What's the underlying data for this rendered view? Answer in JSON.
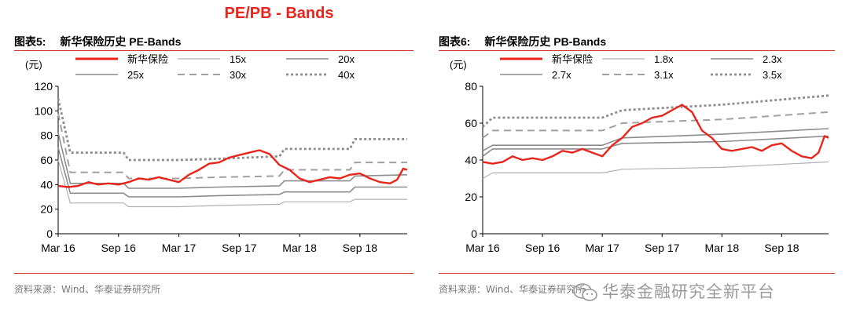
{
  "page_title": "PE/PB - Bands",
  "watermark": "华泰金融研究全新平台",
  "colors": {
    "accent": "#e8251b",
    "rule": "#d13a2c"
  },
  "chart_data": [
    {
      "type": "line",
      "figure_label": "图表5:",
      "title": "新华保险历史 PE-Bands",
      "source": "资料来源：Wind、华泰证券研究所",
      "ylabel": "(元)",
      "ylim": [
        0,
        120
      ],
      "yticks": [
        "0",
        "20",
        "40",
        "60",
        "80",
        "100",
        "120"
      ],
      "xlim": [
        0,
        34.7
      ],
      "x_tick_positions": [
        0,
        6,
        12,
        18,
        24,
        30
      ],
      "x_tick_labels": [
        "Mar 16",
        "Sep 16",
        "Mar 17",
        "Sep 17",
        "Mar 18",
        "Sep 18"
      ],
      "legend_position": "top",
      "series": [
        {
          "name": "新华保险",
          "style": "red",
          "points": [
            [
              0,
              39
            ],
            [
              1,
              38
            ],
            [
              2,
              39
            ],
            [
              3,
              42
            ],
            [
              4,
              40
            ],
            [
              5,
              41
            ],
            [
              6,
              40
            ],
            [
              7,
              42
            ],
            [
              8,
              45
            ],
            [
              9,
              44
            ],
            [
              10,
              46
            ],
            [
              11,
              44
            ],
            [
              12,
              42
            ],
            [
              13,
              48
            ],
            [
              14,
              52
            ],
            [
              15,
              57
            ],
            [
              16,
              58
            ],
            [
              17,
              62
            ],
            [
              18,
              64
            ],
            [
              19,
              66
            ],
            [
              20,
              68
            ],
            [
              21,
              65
            ],
            [
              22,
              56
            ],
            [
              23,
              52
            ],
            [
              24,
              45
            ],
            [
              25,
              42
            ],
            [
              26,
              44
            ],
            [
              27,
              46
            ],
            [
              28,
              45
            ],
            [
              29,
              48
            ],
            [
              30,
              49
            ],
            [
              31,
              45
            ],
            [
              32,
              42
            ],
            [
              33,
              41
            ],
            [
              33.7,
              44
            ],
            [
              34.3,
              53
            ],
            [
              34.7,
              52
            ]
          ]
        },
        {
          "name": "15x",
          "style": "thin",
          "points": [
            [
              0,
              60
            ],
            [
              1.2,
              25
            ],
            [
              5,
              25
            ],
            [
              5.2,
              25
            ],
            [
              6.5,
              25
            ],
            [
              7,
              22
            ],
            [
              12,
              22
            ],
            [
              16,
              23
            ],
            [
              22,
              24
            ],
            [
              22.5,
              26
            ],
            [
              29,
              26
            ],
            [
              29.5,
              28
            ],
            [
              34.7,
              28
            ]
          ]
        },
        {
          "name": "20x",
          "style": "mid",
          "points": [
            [
              0,
              70
            ],
            [
              1.2,
              33
            ],
            [
              6.5,
              33
            ],
            [
              7,
              30
            ],
            [
              12,
              30
            ],
            [
              16,
              31
            ],
            [
              22,
              32
            ],
            [
              22.5,
              34
            ],
            [
              29,
              34
            ],
            [
              29.5,
              38
            ],
            [
              34.7,
              38
            ]
          ]
        },
        {
          "name": "25x",
          "style": "mid",
          "points": [
            [
              0,
              82
            ],
            [
              1.2,
              41
            ],
            [
              6.5,
              41
            ],
            [
              7,
              37
            ],
            [
              12,
              37
            ],
            [
              16,
              38
            ],
            [
              22,
              39
            ],
            [
              22.5,
              43
            ],
            [
              29,
              43
            ],
            [
              29.5,
              47
            ],
            [
              34.7,
              48
            ]
          ]
        },
        {
          "name": "30x",
          "style": "dash",
          "points": [
            [
              0,
              98
            ],
            [
              1.2,
              50
            ],
            [
              6.5,
              50
            ],
            [
              7,
              45
            ],
            [
              12,
              45
            ],
            [
              16,
              46
            ],
            [
              22,
              47
            ],
            [
              22.5,
              52
            ],
            [
              29,
              52
            ],
            [
              29.5,
              58
            ],
            [
              34.7,
              58
            ]
          ]
        },
        {
          "name": "40x",
          "style": "dot",
          "points": [
            [
              0,
              110
            ],
            [
              1.2,
              66
            ],
            [
              6.5,
              66
            ],
            [
              7,
              60
            ],
            [
              12,
              60
            ],
            [
              16,
              61
            ],
            [
              22,
              63
            ],
            [
              22.5,
              69
            ],
            [
              29,
              69
            ],
            [
              29.5,
              77
            ],
            [
              34.7,
              77
            ]
          ]
        }
      ]
    },
    {
      "type": "line",
      "figure_label": "图表6:",
      "title": "新华保险历史 PB-Bands",
      "source": "资料来源：Wind、华泰证券研究所",
      "ylabel": "(元)",
      "ylim": [
        0,
        80
      ],
      "yticks": [
        "0",
        "20",
        "40",
        "60",
        "80"
      ],
      "xlim": [
        0,
        34.7
      ],
      "x_tick_positions": [
        0,
        6,
        12,
        18,
        24,
        30
      ],
      "x_tick_labels": [
        "Mar 16",
        "Sep 16",
        "Mar 17",
        "Sep 17",
        "Mar 18",
        "Sep 18"
      ],
      "legend_position": "top",
      "series": [
        {
          "name": "新华保险",
          "style": "red",
          "points": [
            [
              0,
              39
            ],
            [
              1,
              38
            ],
            [
              2,
              39
            ],
            [
              3,
              42
            ],
            [
              4,
              40
            ],
            [
              5,
              41
            ],
            [
              6,
              40
            ],
            [
              7,
              42
            ],
            [
              8,
              45
            ],
            [
              9,
              44
            ],
            [
              10,
              46
            ],
            [
              11,
              44
            ],
            [
              12,
              42
            ],
            [
              13,
              48
            ],
            [
              14,
              52
            ],
            [
              15,
              58
            ],
            [
              16,
              60
            ],
            [
              17,
              63
            ],
            [
              18,
              64
            ],
            [
              19,
              67
            ],
            [
              20,
              70
            ],
            [
              21,
              66
            ],
            [
              22,
              56
            ],
            [
              23,
              52
            ],
            [
              24,
              46
            ],
            [
              25,
              45
            ],
            [
              26,
              46
            ],
            [
              27,
              47
            ],
            [
              28,
              45
            ],
            [
              29,
              48
            ],
            [
              30,
              49
            ],
            [
              31,
              45
            ],
            [
              32,
              42
            ],
            [
              33,
              41
            ],
            [
              33.7,
              44
            ],
            [
              34.3,
              53
            ],
            [
              34.7,
              52
            ]
          ]
        },
        {
          "name": "1.8x",
          "style": "thin",
          "points": [
            [
              0,
              30
            ],
            [
              1,
              33
            ],
            [
              12,
              33
            ],
            [
              14,
              35
            ],
            [
              24,
              36
            ],
            [
              34.7,
              39
            ]
          ]
        },
        {
          "name": "2.3x",
          "style": "mid",
          "points": [
            [
              0,
              42
            ],
            [
              1,
              46
            ],
            [
              12,
              46
            ],
            [
              14,
              49
            ],
            [
              24,
              50
            ],
            [
              34.7,
              53
            ]
          ]
        },
        {
          "name": "2.7x",
          "style": "mid",
          "points": [
            [
              0,
              45
            ],
            [
              1,
              48
            ],
            [
              12,
              48
            ],
            [
              14,
              52
            ],
            [
              24,
              54
            ],
            [
              34.7,
              57
            ]
          ]
        },
        {
          "name": "3.1x",
          "style": "dash",
          "points": [
            [
              0,
              52
            ],
            [
              1,
              56
            ],
            [
              12,
              56
            ],
            [
              14,
              60
            ],
            [
              24,
              62
            ],
            [
              34.7,
              66
            ]
          ]
        },
        {
          "name": "3.5x",
          "style": "dot",
          "points": [
            [
              0,
              58
            ],
            [
              1,
              63
            ],
            [
              12,
              63
            ],
            [
              14,
              67
            ],
            [
              24,
              70
            ],
            [
              34.7,
              75
            ]
          ]
        }
      ]
    }
  ]
}
